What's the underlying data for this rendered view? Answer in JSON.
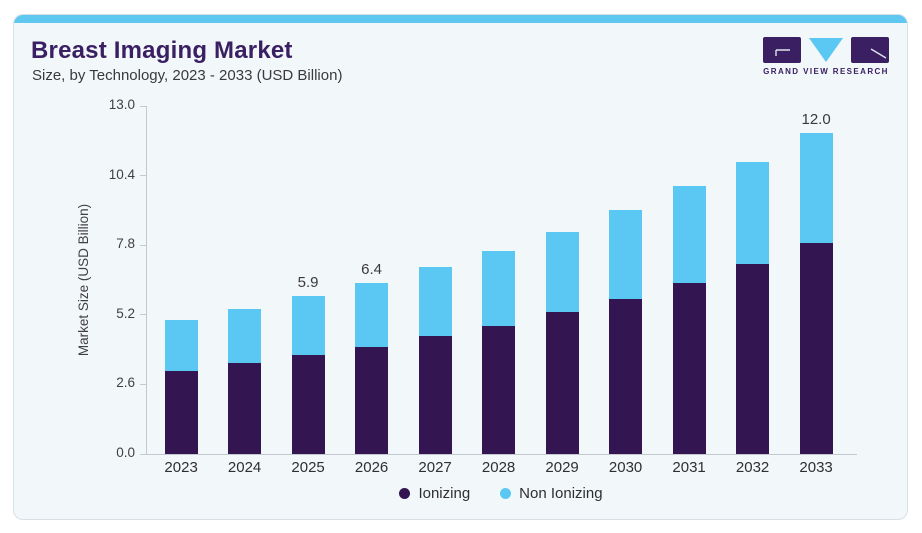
{
  "header": {
    "title": "Breast Imaging Market",
    "subtitle": "Size, by Technology, 2023 - 2033 (USD Billion)",
    "logo_text": "GRAND VIEW RESEARCH"
  },
  "colors": {
    "accent_strip": "#5fc8f0",
    "card_background": "#f2f7fa",
    "card_border": "#d9dfe5",
    "brand_purple": "#3a2063",
    "ionizing_bar": "#321551",
    "non_ionizing_bar": "#5ac8f2",
    "axis_line": "#c3c9cf"
  },
  "chart_data": {
    "type": "bar",
    "stacked": true,
    "title": "Breast Imaging Market",
    "subtitle": "Size, by Technology, 2023 - 2033 (USD Billion)",
    "categories": [
      "2023",
      "2024",
      "2025",
      "2026",
      "2027",
      "2028",
      "2029",
      "2030",
      "2031",
      "2032",
      "2033"
    ],
    "series": [
      {
        "name": "Ionizing",
        "color": "#321551",
        "values": [
          3.1,
          3.4,
          3.7,
          4.0,
          4.4,
          4.8,
          5.3,
          5.8,
          6.4,
          7.1,
          7.9
        ]
      },
      {
        "name": "Non Ionizing",
        "color": "#5ac8f2",
        "values": [
          1.9,
          2.0,
          2.2,
          2.4,
          2.6,
          2.8,
          3.0,
          3.3,
          3.6,
          3.8,
          4.1
        ]
      }
    ],
    "totals": [
      5.0,
      5.4,
      5.9,
      6.4,
      7.0,
      7.6,
      8.3,
      9.1,
      10.0,
      10.9,
      12.0
    ],
    "bar_value_labels": [
      "",
      "",
      "5.9",
      "6.4",
      "",
      "",
      "",
      "",
      "",
      "",
      "12.0"
    ],
    "xlabel": "",
    "ylabel": "Market Size (USD Billion)",
    "ylim": [
      0,
      13
    ],
    "yticks": [
      "0.0",
      "2.6",
      "5.2",
      "7.8",
      "10.4",
      "13.0"
    ],
    "grid": false,
    "legend": [
      "Ionizing",
      "Non Ionizing"
    ],
    "legend_position": "bottom"
  }
}
